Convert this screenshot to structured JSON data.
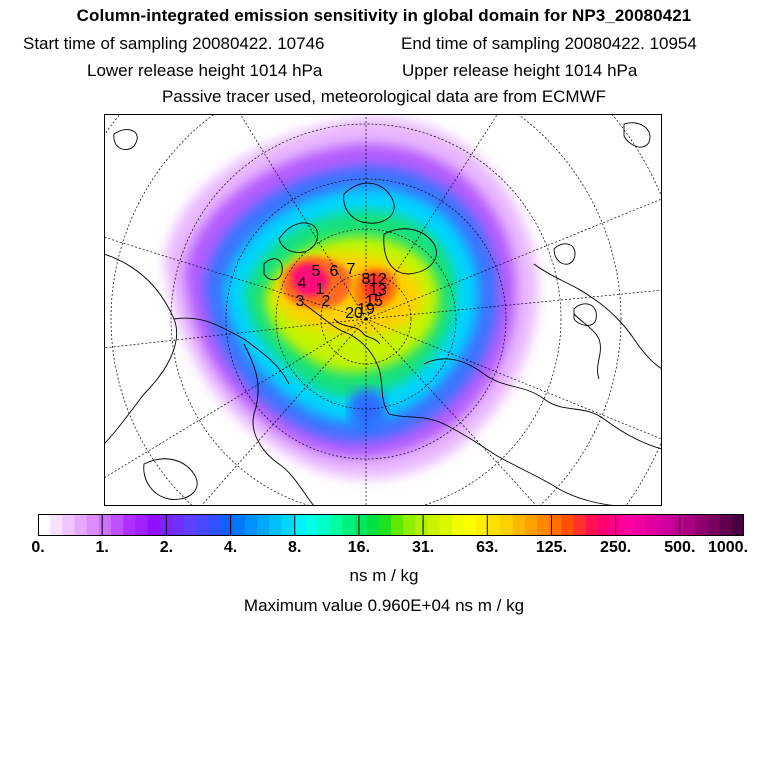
{
  "header": {
    "title": "Column-integrated emission sensitivity in global domain for NP3_20080421",
    "start_sampling": "Start time of sampling 20080422. 10746",
    "end_sampling": "End time of sampling 20080422. 10954",
    "lower_release": "Lower release height 1014 hPa",
    "upper_release": "Upper release height 1014 hPa",
    "tracer_note": "Passive tracer used, meteorological data are from ECMWF"
  },
  "map": {
    "projection": "north-polar-stereographic",
    "trajectory_labels": [
      "1",
      "2",
      "3",
      "4",
      "5",
      "6",
      "7",
      "8",
      "12",
      "13",
      "15",
      "19",
      "20"
    ]
  },
  "colorbar": {
    "tick_labels": [
      "0.",
      "1.",
      "2.",
      "4.",
      "8.",
      "16.",
      "31.",
      "63.",
      "125.",
      "250.",
      "500.",
      "1000."
    ],
    "colors": [
      "#ffffff",
      "#f8e0ff",
      "#f0c4ff",
      "#e8a8ff",
      "#dc8cff",
      "#d070ff",
      "#c050ff",
      "#b030ff",
      "#a020ff",
      "#9010ff",
      "#8020ff",
      "#7030ff",
      "#6040ff",
      "#4848ff",
      "#3050ff",
      "#1060ff",
      "#0078ff",
      "#0090ff",
      "#00a8ff",
      "#00c0ff",
      "#00d8ff",
      "#00f0ff",
      "#00ffe8",
      "#00ffc8",
      "#00ffa0",
      "#00f080",
      "#00e860",
      "#00e040",
      "#20e020",
      "#60e800",
      "#90f000",
      "#b0f000",
      "#c8f400",
      "#dcf800",
      "#f0fc00",
      "#ffff00",
      "#fff000",
      "#ffe000",
      "#ffd000",
      "#ffb800",
      "#ffa000",
      "#ff8800",
      "#ff7000",
      "#ff5000",
      "#ff3030",
      "#ff1050",
      "#ff0070",
      "#ff0090",
      "#ff00a0",
      "#f000a0",
      "#e000a0",
      "#d000a0",
      "#c00090",
      "#a80080",
      "#900070",
      "#780060",
      "#600050",
      "#480040"
    ],
    "units": "ns m / kg"
  },
  "max_value": "Maximum value  0.960E+04 ns m / kg"
}
